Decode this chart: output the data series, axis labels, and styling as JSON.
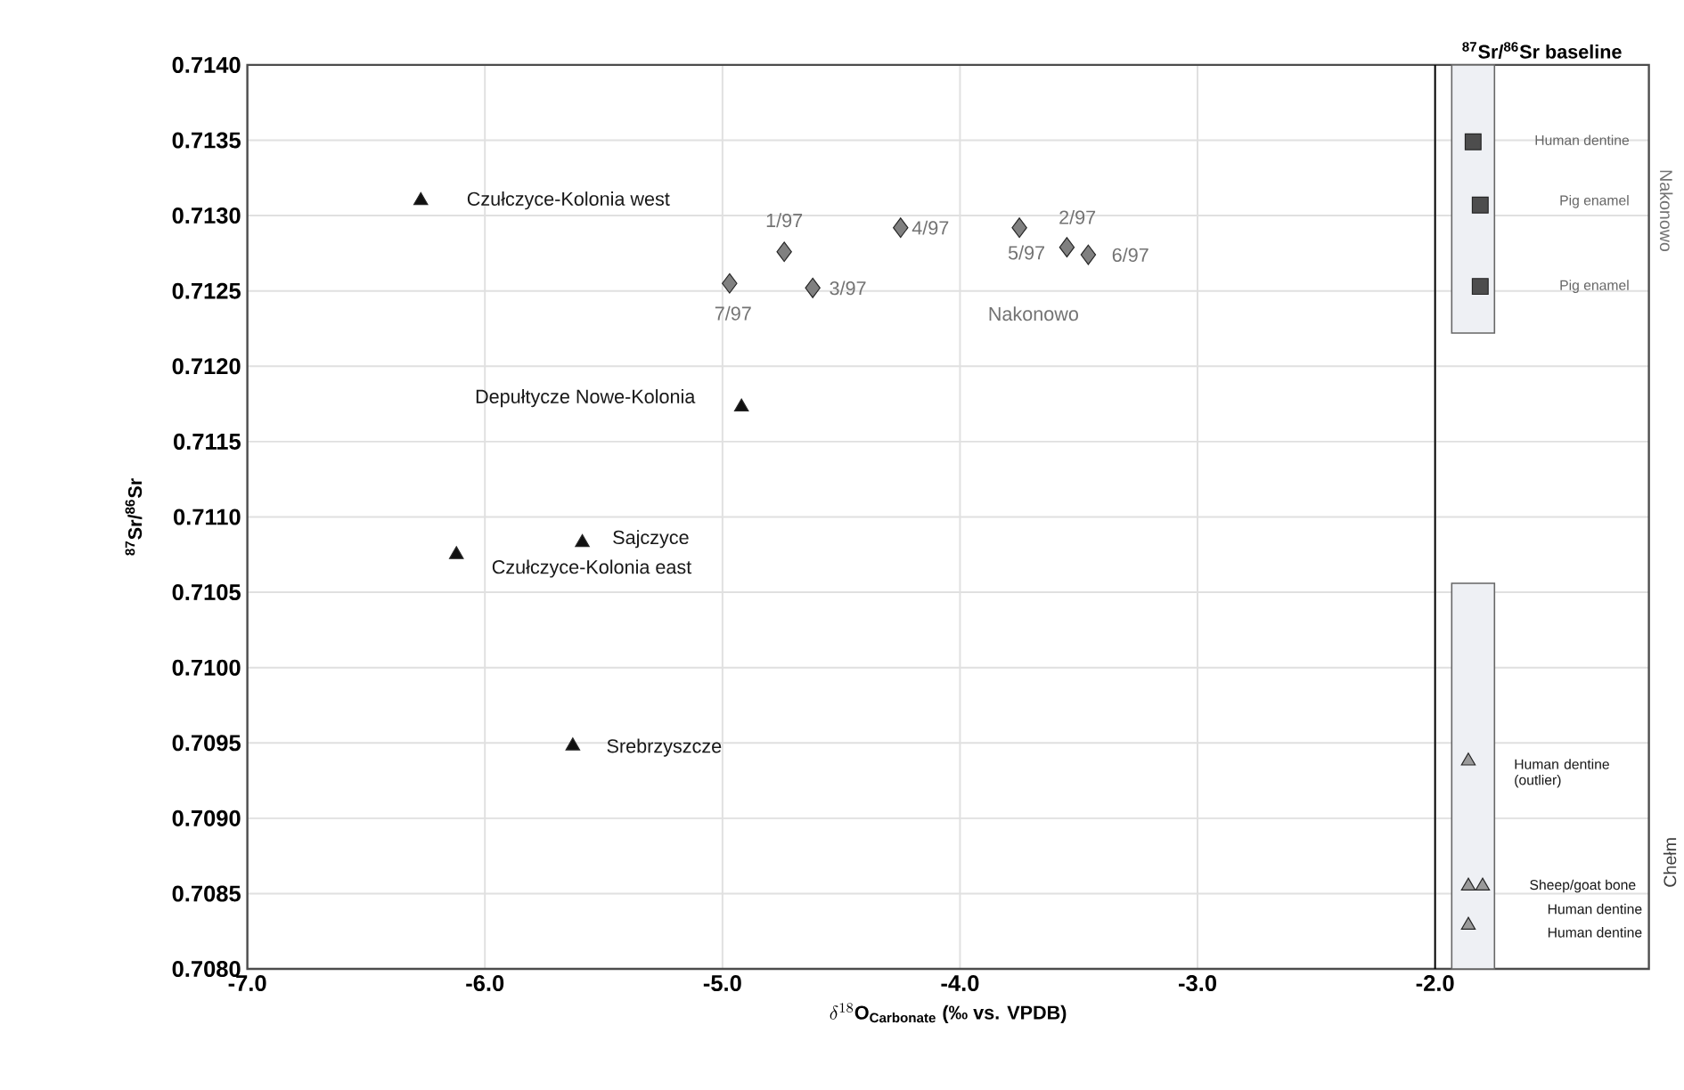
{
  "chart_data": {
    "type": "scatter",
    "xlabel": "\\delta^{18}\\mathbf{O}_{\\mathbf{Carbonate}}\\ \\mbox{\\bfseries (‰ vs. VPDB)}",
    "ylabel": "$^{87}$Sr/$^{86}$Sr",
    "xlim": [
      -7.0,
      -1.1
    ],
    "xticks": [
      {
        "value": -7.0,
        "label": "-7.0"
      },
      {
        "value": -6.0,
        "label": "-6.0"
      },
      {
        "value": -5.0,
        "label": "-5.0"
      },
      {
        "value": -4.0,
        "label": "-4.0"
      },
      {
        "value": -3.0,
        "label": "-3.0"
      },
      {
        "value": -2.0,
        "label": "-2.0"
      }
    ],
    "ylim": [
      0.708,
      0.714
    ],
    "yticks": [
      {
        "value": 0.708,
        "label": "0.7080"
      },
      {
        "value": 0.7085,
        "label": "0.7085"
      },
      {
        "value": 0.709,
        "label": "0.7090"
      },
      {
        "value": 0.7095,
        "label": "0.7095"
      },
      {
        "value": 0.71,
        "label": "0.7100"
      },
      {
        "value": 0.7105,
        "label": "0.7105"
      },
      {
        "value": 0.711,
        "label": "0.7110"
      },
      {
        "value": 0.7115,
        "label": "0.7115"
      },
      {
        "value": 0.712,
        "label": "0.7120"
      },
      {
        "value": 0.7125,
        "label": "0.7125"
      },
      {
        "value": 0.713,
        "label": "0.7130"
      },
      {
        "value": 0.7135,
        "label": "0.7135"
      },
      {
        "value": 0.714,
        "label": "0.7140"
      }
    ],
    "grid": true,
    "series": [
      {
        "type": "bar",
        "color": "#eef0f4",
        "x": [
          -1.84,
          -1.84
        ],
        "base": [
          0.71222,
          0.708
        ],
        "values": [
          0.00178,
          0.00256
        ]
      },
      {
        "marker": "triangle",
        "color": "#111111",
        "x": [
          -6.27,
          -4.92,
          -5.59,
          -6.12,
          -5.63
        ],
        "values": [
          0.7131,
          0.71173,
          0.71083,
          0.71075,
          0.70948
        ]
      },
      {
        "marker": "diamond",
        "color": "#808080",
        "x": [
          -4.97,
          -4.74,
          -4.62,
          -4.25,
          -3.75,
          -3.55,
          -3.46
        ],
        "values": [
          0.71255,
          0.71276,
          0.71252,
          0.71292,
          0.71292,
          0.71279,
          0.71274
        ]
      },
      {
        "marker": "square",
        "color": "#4d4d4d",
        "x": [
          -1.84,
          -1.81,
          -1.81
        ],
        "values": [
          0.71349,
          0.71307,
          0.71253
        ]
      },
      {
        "marker": "triangle",
        "color": "#9a9a9a",
        "x": [
          -1.86,
          -1.86,
          -1.8,
          -1.86
        ],
        "values": [
          0.70938,
          0.70855,
          0.70855,
          0.70829
        ]
      }
    ],
    "ref_lines": [
      {
        "axis": "x",
        "value": -2.0,
        "label": "$^{87}$Sr/$^{86}$Sr baseline",
        "color": "#000000"
      }
    ],
    "annotations": [
      {
        "text": "Czułczyce-Kolonia west",
        "x": -6.27,
        "y": 0.7131
      },
      {
        "text": "Depułtycze Nowe-Kolonia",
        "x": -4.92,
        "y": 0.71173
      },
      {
        "text": "Sajczyce",
        "x": -5.59,
        "y": 0.71083
      },
      {
        "text": "Czułczyce-Kolonia east",
        "x": -6.12,
        "y": 0.71075
      },
      {
        "text": "Srebrzyszcze",
        "x": -5.63,
        "y": 0.70948
      },
      {
        "text": "1/97",
        "x": -4.74,
        "y": 0.71276
      },
      {
        "text": "7/97",
        "x": -4.97,
        "y": 0.71255
      },
      {
        "text": "3/97",
        "x": -4.62,
        "y": 0.71252
      },
      {
        "text": "4/97",
        "x": -4.25,
        "y": 0.71292
      },
      {
        "text": "2/97",
        "x": -3.75,
        "y": 0.71292
      },
      {
        "text": "5/97",
        "x": -3.55,
        "y": 0.71279
      },
      {
        "text": "6/97",
        "x": -3.46,
        "y": 0.71274
      },
      "Nakonowo",
      "Human dentine",
      "Pig enamel",
      "Pig enamel",
      "Human dentine (outlier)",
      "Sheep/goat bone",
      "Human dentine",
      "Human dentine",
      "Nakonowo",
      "Chełm"
    ]
  }
}
